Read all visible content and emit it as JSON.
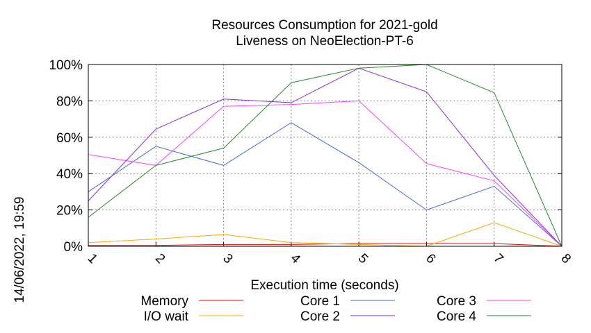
{
  "chart_data": {
    "type": "line",
    "title": "Resources Consumption for 2021-gold",
    "subtitle": "Liveness on NeoElection-PT-6",
    "xlabel": "Execution time (seconds)",
    "ylabel": "",
    "side_label": "14/06/2022, 19:59",
    "x": [
      1,
      2,
      3,
      4,
      5,
      6,
      7,
      8
    ],
    "xlim": [
      1,
      8
    ],
    "ylim": [
      0,
      100
    ],
    "yticks": [
      "0%",
      "20%",
      "40%",
      "60%",
      "80%",
      "100%"
    ],
    "ytick_values": [
      0,
      20,
      40,
      60,
      80,
      100
    ],
    "xticks": [
      "1",
      "2",
      "3",
      "4",
      "5",
      "6",
      "7",
      "8"
    ],
    "grid": true,
    "legend_placement": "bottom",
    "series": [
      {
        "name": "Memory",
        "color": "#ff0000",
        "values": [
          0.5,
          0.5,
          1,
          1,
          1.5,
          1.5,
          1.5,
          0
        ]
      },
      {
        "name": "Core 1",
        "color": "#4169e1",
        "values": [
          30,
          55,
          44.5,
          68,
          46,
          20,
          33,
          0
        ]
      },
      {
        "name": "Core 3",
        "color": "#ff44ff",
        "values": [
          50.5,
          44.5,
          77,
          78,
          80,
          45.5,
          36,
          0
        ]
      },
      {
        "name": "I/O wait",
        "color": "#ffa500",
        "values": [
          2,
          4,
          6.5,
          2,
          1,
          0,
          13,
          0
        ]
      },
      {
        "name": "Core 2",
        "color": "#8a2be2",
        "values": [
          25,
          64.5,
          81,
          79,
          98,
          85,
          39,
          0
        ]
      },
      {
        "name": "Core 4",
        "color": "#228b22",
        "values": [
          16,
          44.5,
          54,
          90,
          98,
          100,
          84.5,
          0
        ]
      }
    ]
  }
}
